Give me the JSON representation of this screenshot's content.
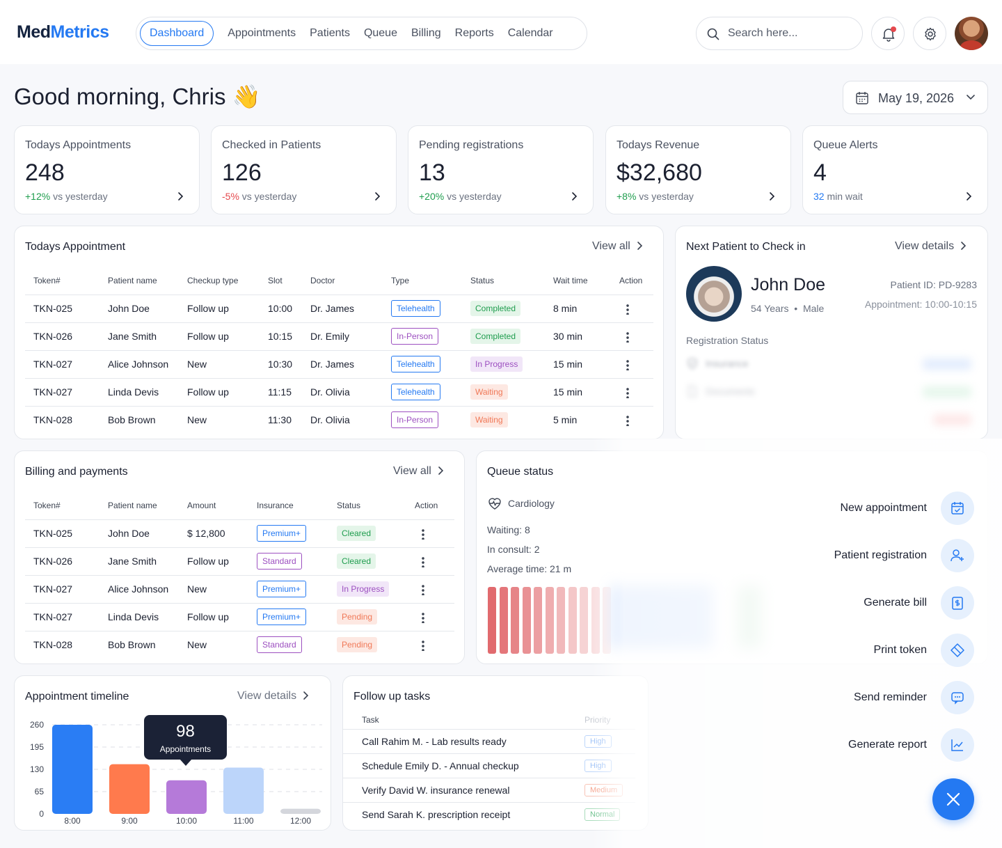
{
  "brand": {
    "part1": "Med",
    "part2": "Metrics"
  },
  "nav": [
    "Dashboard",
    "Appointments",
    "Patients",
    "Queue",
    "Billing",
    "Reports",
    "Calendar"
  ],
  "search": {
    "placeholder": "Search here..."
  },
  "greeting": "Good morning, Chris 👋",
  "date": "May 19, 2026",
  "stats": [
    {
      "label": "Todays Appointments",
      "value": "248",
      "delta": "+12%",
      "delta_text": " vs yesterday",
      "tone": "pos"
    },
    {
      "label": "Checked in Patients",
      "value": "126",
      "delta": "-5%",
      "delta_text": " vs yesterday",
      "tone": "neg"
    },
    {
      "label": "Pending registrations",
      "value": "13",
      "delta": "+20%",
      "delta_text": " vs yesterday",
      "tone": "pos"
    },
    {
      "label": "Todays Revenue",
      "value": "$32,680",
      "delta": "+8%",
      "delta_text": " vs yesterday",
      "tone": "pos"
    },
    {
      "label": "Queue Alerts",
      "value": "4",
      "delta": "32",
      "delta_text": " min wait",
      "tone": "blue"
    }
  ],
  "appointments": {
    "title": "Todays Appointment",
    "view_all": "View all",
    "headers": [
      "Token#",
      "Patient name",
      "Checkup type",
      "Slot",
      "Doctor",
      "Type",
      "Status",
      "Wait time",
      "Action"
    ],
    "rows": [
      {
        "token": "TKN-025",
        "name": "John Doe",
        "checkup": "Follow up",
        "slot": "10:00",
        "doctor": "Dr. James",
        "type": "Telehealth",
        "status": "Completed",
        "wait": "8 min"
      },
      {
        "token": "TKN-026",
        "name": "Jane Smith",
        "checkup": "Follow up",
        "slot": "10:15",
        "doctor": "Dr. Emily",
        "type": "In-Person",
        "status": "Completed",
        "wait": "30 min"
      },
      {
        "token": "TKN-027",
        "name": "Alice Johnson",
        "checkup": "New",
        "slot": "10:30",
        "doctor": "Dr. James",
        "type": "Telehealth",
        "status": "In Progress",
        "wait": "15 min"
      },
      {
        "token": "TKN-027",
        "name": "Linda Devis",
        "checkup": "Follow up",
        "slot": "11:15",
        "doctor": "Dr. Olivia",
        "type": "Telehealth",
        "status": "Waiting",
        "wait": "15 min"
      },
      {
        "token": "TKN-028",
        "name": "Bob Brown",
        "checkup": "New",
        "slot": "11:30",
        "doctor": "Dr. Olivia",
        "type": "In-Person",
        "status": "Waiting",
        "wait": "5 min"
      }
    ]
  },
  "next_patient": {
    "title": "Next Patient to Check in",
    "view_details": "View details",
    "name": "John Doe",
    "age": "54 Years",
    "gender": "Male",
    "patient_id": "Patient ID: PD-9283",
    "appointment": "Appointment: 10:00-10:15",
    "reg_title": "Registration Status",
    "reg_items": [
      "Insurance",
      "Documents"
    ]
  },
  "billing": {
    "title": "Billing and payments",
    "view_all": "View all",
    "headers": [
      "Token#",
      "Patient name",
      "Amount",
      "Insurance",
      "Status",
      "Action"
    ],
    "rows": [
      {
        "token": "TKN-025",
        "name": "John Doe",
        "amount": "$ 12,800",
        "insurance": "Premium+",
        "status": "Cleared"
      },
      {
        "token": "TKN-026",
        "name": "Jane Smith",
        "amount": "Follow up",
        "insurance": "Standard",
        "status": "Cleared"
      },
      {
        "token": "TKN-027",
        "name": "Alice Johnson",
        "amount": "New",
        "insurance": "Premium+",
        "status": "In Progress"
      },
      {
        "token": "TKN-027",
        "name": "Linda Devis",
        "amount": "Follow up",
        "insurance": "Premium+",
        "status": "Pending"
      },
      {
        "token": "TKN-028",
        "name": "Bob Brown",
        "amount": "New",
        "insurance": "Standard",
        "status": "Pending"
      }
    ]
  },
  "queue": {
    "title": "Queue status",
    "dept": "Cardiology",
    "waiting": "Waiting: 8",
    "in_consult": "In consult: 2",
    "avg_time": "Average time: 21 m"
  },
  "timeline": {
    "title": "Appointment  timeline",
    "view_details": "View details",
    "tooltip_value": "98",
    "tooltip_label": "Appointments"
  },
  "chart_data": {
    "type": "bar",
    "title": "Appointment  timeline",
    "categories": [
      "8:00",
      "9:00",
      "10:00",
      "11:00",
      "12:00"
    ],
    "values": [
      260,
      145,
      98,
      135,
      15
    ],
    "yticks": [
      0,
      65,
      130,
      195,
      260
    ],
    "ylim": [
      0,
      260
    ],
    "colors": [
      "#2a7df4",
      "#ff7a4d",
      "#b57ad9",
      "#bcd5fa",
      "#d4d6dc"
    ],
    "grid": true
  },
  "followup": {
    "title": "Follow up tasks",
    "headers": [
      "Task",
      "Priority"
    ],
    "rows": [
      {
        "task": "Call Rahim M. - Lab results ready",
        "priority": "High"
      },
      {
        "task": "Schedule Emily D. - Annual checkup",
        "priority": "High"
      },
      {
        "task": "Verify David W. insurance renewal",
        "priority": "Medium"
      },
      {
        "task": "Send Sarah K. prescription receipt",
        "priority": "Normal"
      }
    ]
  },
  "quick_actions": [
    {
      "label": "New appointment",
      "icon": "calendar-check-icon"
    },
    {
      "label": "Patient registration",
      "icon": "user-plus-icon"
    },
    {
      "label": "Generate bill",
      "icon": "receipt-icon"
    },
    {
      "label": "Print token",
      "icon": "ticket-icon"
    },
    {
      "label": "Send reminder",
      "icon": "message-icon"
    },
    {
      "label": "Generate report",
      "icon": "chart-line-icon"
    }
  ],
  "colors": {
    "accent": "#2479f2",
    "success": "#1f9d4e",
    "danger": "#e5484d",
    "dark": "#1b2236"
  }
}
